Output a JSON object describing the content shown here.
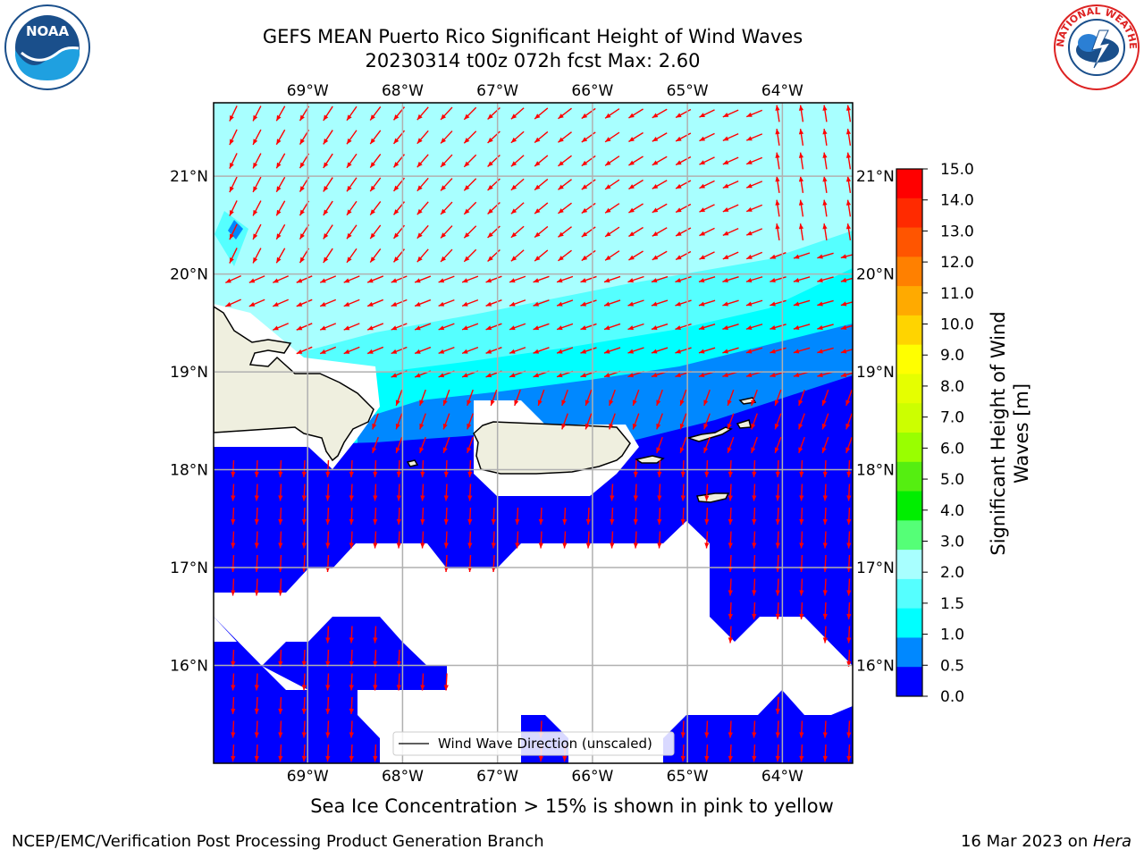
{
  "title": {
    "line1": "GEFS MEAN Puerto Rico Significant Height of Wind Waves",
    "line2": "20230314 t00z 072h fcst   Max: 2.60"
  },
  "map": {
    "lon_labels": [
      "69°W",
      "68°W",
      "67°W",
      "66°W",
      "65°W",
      "64°W"
    ],
    "lat_labels": [
      "21°N",
      "20°N",
      "19°N",
      "18°N",
      "17°N",
      "16°N"
    ],
    "lon_range": [
      -69.99,
      -63.26
    ],
    "lat_range": [
      15.0,
      21.75
    ],
    "legend_label": "Wind Wave Direction (unscaled)",
    "colors": {
      "land": "#efefdf",
      "arrow": "#ff0000",
      "grid": "#b0b0b0"
    }
  },
  "colorbar": {
    "label": "Significant Height of Wind Waves [m]",
    "label_line1": "Significant Height of Wind",
    "label_line2": "Waves [m]",
    "ticks": [
      "15.0",
      "14.0",
      "13.0",
      "12.0",
      "11.0",
      "10.0",
      "9.0",
      "8.0",
      "7.0",
      "6.0",
      "5.0",
      "4.0",
      "3.0",
      "2.0",
      "1.5",
      "1.0",
      "0.5",
      "0.0"
    ],
    "colors": [
      "#ff0000",
      "#ff2a00",
      "#ff5500",
      "#ff8000",
      "#ffaa00",
      "#ffd400",
      "#ffff00",
      "#e5ff00",
      "#ccff00",
      "#99ff00",
      "#55ee11",
      "#00ee00",
      "#55ff77",
      "#a8ffff",
      "#55ffff",
      "#00ffff",
      "#0088ff",
      "#0000ff"
    ]
  },
  "sea_ice_note": "Sea Ice Concentration > 15% is shown in pink to yellow",
  "footer": {
    "left": "NCEP/EMC/Verification Post Processing Product Generation Branch",
    "date": "16 Mar 2023 on ",
    "host": "Hera"
  },
  "logos": {
    "noaa_text": "NOAA",
    "nws_text": "NATIONAL WEATHER SERVICE"
  }
}
